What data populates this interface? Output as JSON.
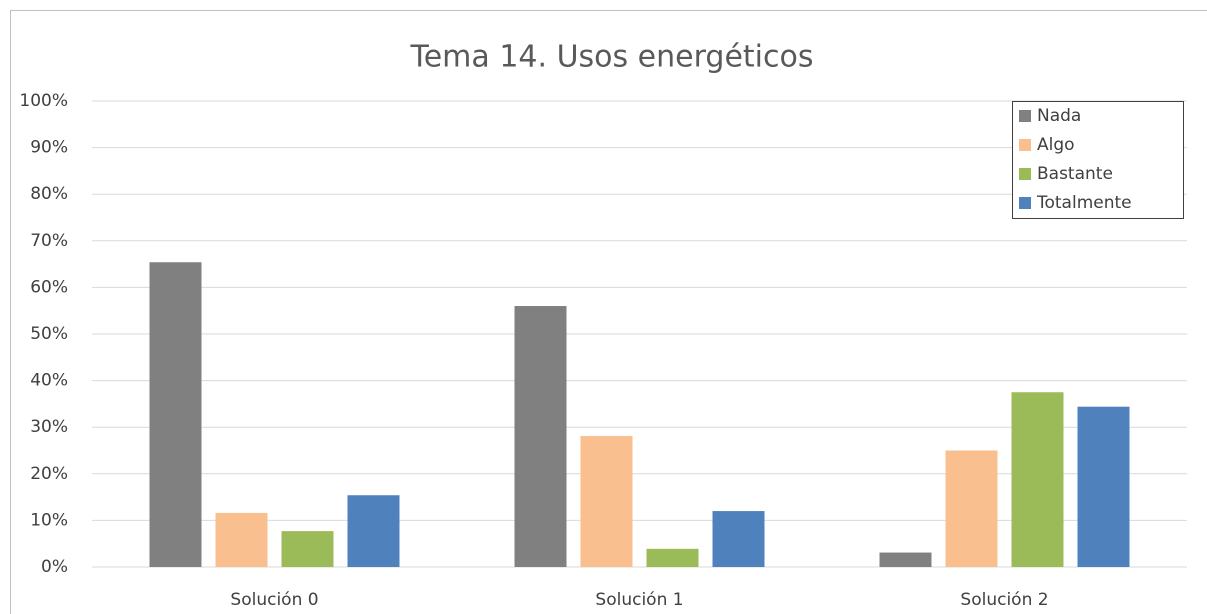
{
  "chart_data": {
    "type": "bar",
    "title": "Tema 14. Usos energéticos",
    "categories": [
      "Solución 0",
      "Solución 1",
      "Solución 2"
    ],
    "series": [
      {
        "name": "Nada",
        "color": "#808080",
        "values": [
          65.4,
          56.0,
          3.1
        ]
      },
      {
        "name": "Algo",
        "color": "#f9bf8f",
        "values": [
          11.6,
          28.1,
          25.0
        ]
      },
      {
        "name": "Bastante",
        "color": "#9bbb59",
        "values": [
          7.7,
          3.9,
          37.5
        ]
      },
      {
        "name": "Totalmente",
        "color": "#4f81bd",
        "values": [
          15.4,
          12.0,
          34.4
        ]
      }
    ],
    "ylim": [
      0,
      100
    ],
    "yticks": [
      {
        "value": 0,
        "label": "0%"
      },
      {
        "value": 10,
        "label": "10%"
      },
      {
        "value": 20,
        "label": "20%"
      },
      {
        "value": 30,
        "label": "30%"
      },
      {
        "value": 40,
        "label": "40%"
      },
      {
        "value": 50,
        "label": "50%"
      },
      {
        "value": 60,
        "label": "60%"
      },
      {
        "value": 70,
        "label": "70%"
      },
      {
        "value": 80,
        "label": "80%"
      },
      {
        "value": 90,
        "label": "90%"
      },
      {
        "value": 100,
        "label": "100%"
      }
    ],
    "grid": true,
    "legend": "upper right"
  }
}
